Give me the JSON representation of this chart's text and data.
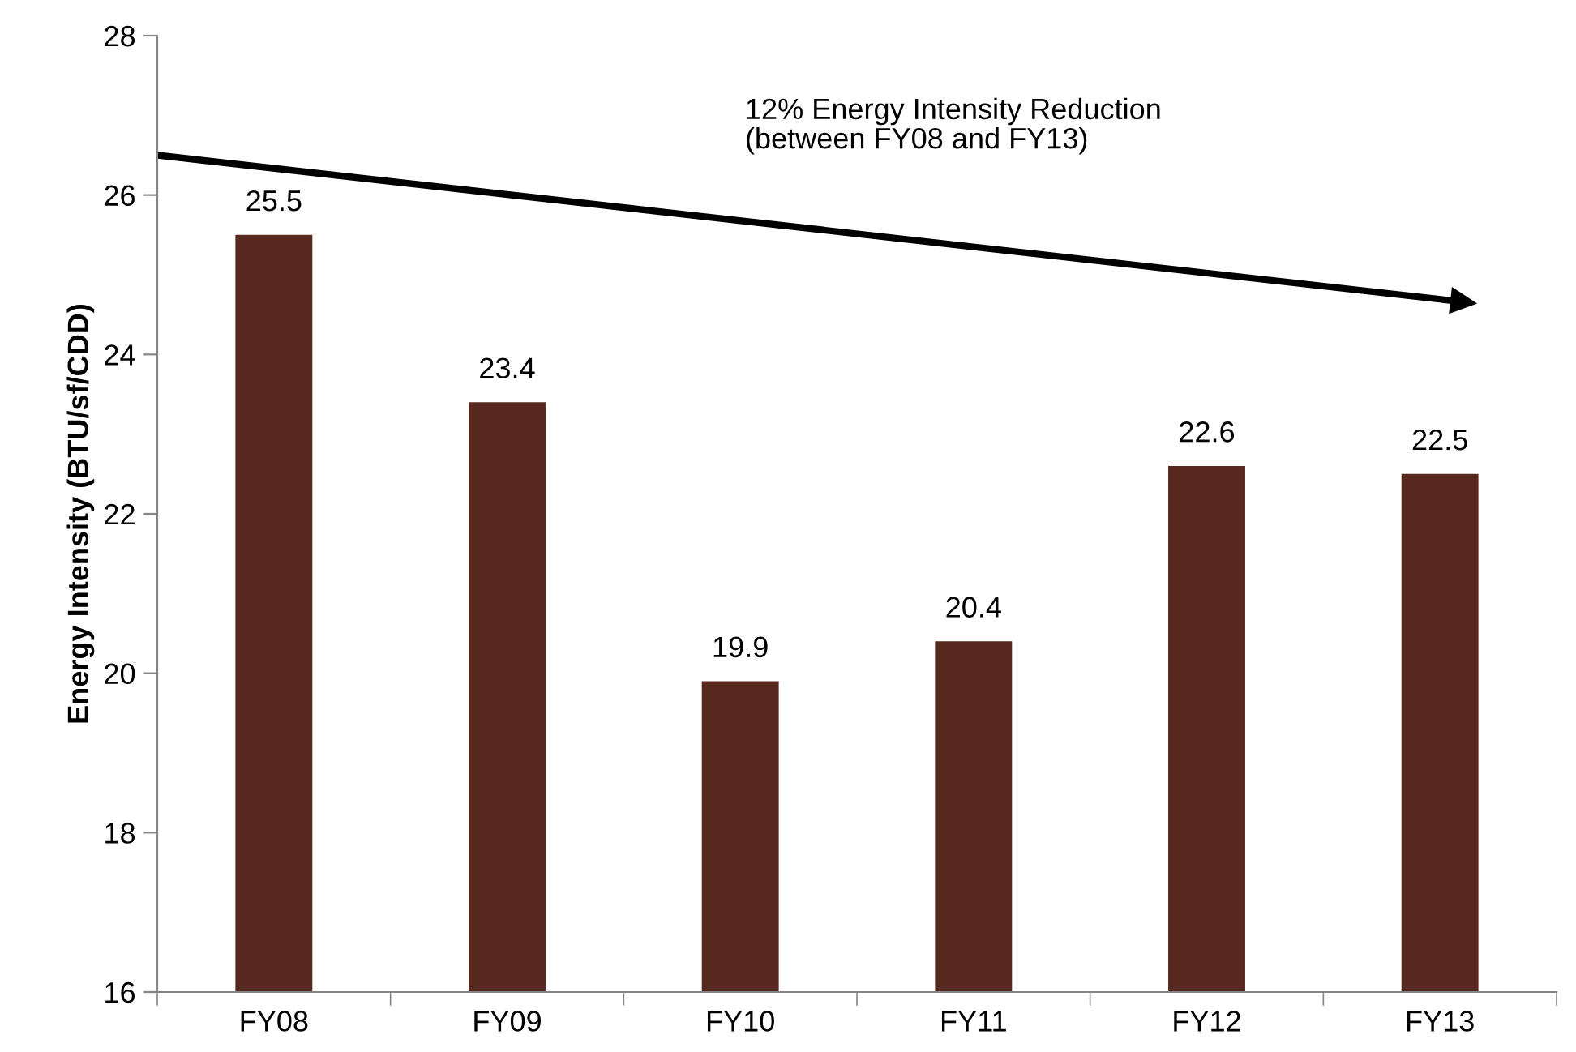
{
  "chart_data": {
    "type": "bar",
    "ylabel": "Energy Intensity (BTU/sf/CDD)",
    "categories": [
      "FY08",
      "FY09",
      "FY10",
      "FY11",
      "FY12",
      "FY13"
    ],
    "values": [
      25.5,
      23.4,
      19.9,
      20.4,
      22.6,
      22.5
    ],
    "color": "#58291e",
    "ylim": [
      16,
      28
    ],
    "yticks": [
      16,
      18,
      20,
      22,
      24,
      26,
      28
    ],
    "grid": false,
    "legend": false,
    "data_labels": true,
    "annotations": [
      "12% Energy Intensity Reduction\n(between FY08 and FY13)"
    ]
  }
}
